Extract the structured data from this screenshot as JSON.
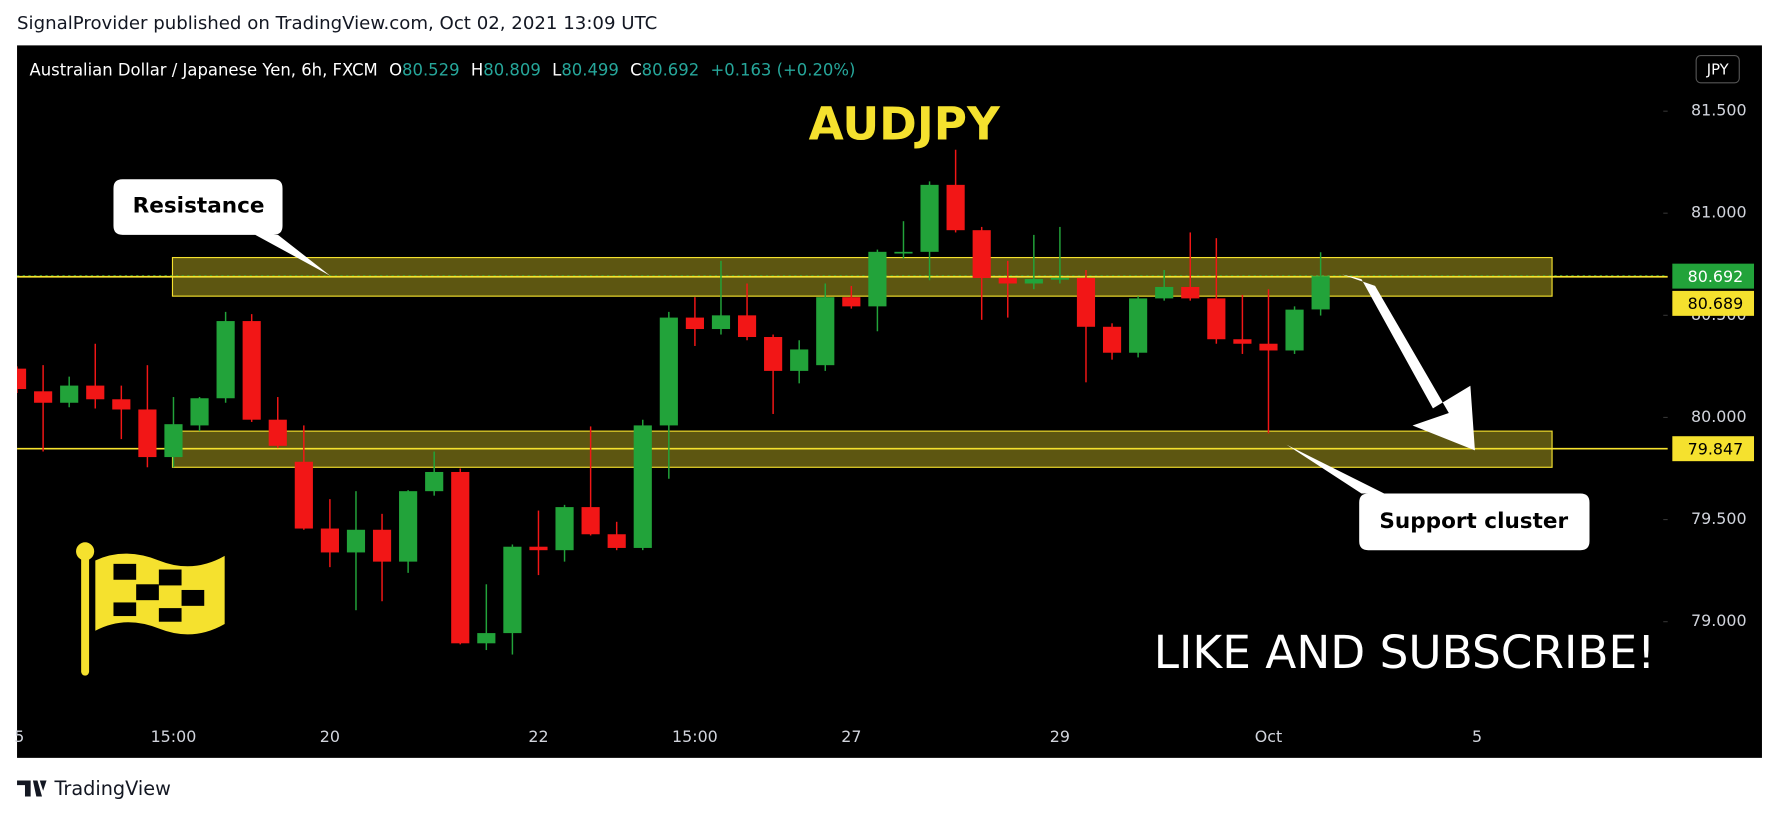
{
  "header": {
    "published": "SignalProvider published on TradingView.com, Oct 02, 2021 13:09 UTC"
  },
  "footer": {
    "brand": "TradingView"
  },
  "chart_data": {
    "type": "candlestick",
    "title": "AUDJPY",
    "symbol": "Australian Dollar / Japanese Yen, 6h, FXCM",
    "legend_values": [
      {
        "label": "O",
        "value": 80.529
      },
      {
        "label": "H",
        "value": 80.809
      },
      {
        "label": "L",
        "value": 80.499
      },
      {
        "label": "C",
        "value": 80.692
      }
    ],
    "change": "+0.163 (+0.20%)",
    "currency": "JPY",
    "up_color": "#22a33a",
    "down_color": "#f21616",
    "x": [
      "5",
      null,
      null,
      null,
      null,
      null,
      "15:00",
      null,
      null,
      null,
      null,
      null,
      "20",
      null,
      null,
      null,
      null,
      null,
      null,
      null,
      "22",
      null,
      null,
      null,
      null,
      null,
      "15:00",
      null,
      null,
      null,
      null,
      null,
      "27",
      null,
      null,
      null,
      null,
      null,
      null,
      null,
      "29",
      null,
      null,
      null,
      null,
      null,
      null,
      null,
      "Oct",
      null,
      null,
      null,
      null,
      null,
      null,
      null,
      "5"
    ],
    "open": [
      80.239,
      80.128,
      80.072,
      80.156,
      80.089,
      80.039,
      79.806,
      79.961,
      80.094,
      80.472,
      79.989,
      79.783,
      79.456,
      79.339,
      79.45,
      79.294,
      79.639,
      79.733,
      78.894,
      78.944,
      79.367,
      79.35,
      79.561,
      79.428,
      79.361,
      79.961,
      80.489,
      80.433,
      80.5,
      80.394,
      80.228,
      80.256,
      80.589,
      80.544,
      80.806,
      80.811,
      81.139,
      80.917,
      80.683,
      80.656,
      80.678,
      80.683,
      80.444,
      80.317,
      80.583,
      80.639,
      80.583,
      80.383,
      80.361,
      80.328,
      80.529,
      null,
      null,
      null,
      null,
      null,
      null
    ],
    "high": [
      80.25,
      80.256,
      80.2,
      80.361,
      80.156,
      80.256,
      80.1,
      80.1,
      80.517,
      80.506,
      80.1,
      79.961,
      79.6,
      79.639,
      79.528,
      79.644,
      79.833,
      79.75,
      79.183,
      79.378,
      79.544,
      79.572,
      79.956,
      79.489,
      79.989,
      80.517,
      80.589,
      80.767,
      80.656,
      80.406,
      80.378,
      80.656,
      80.644,
      80.822,
      80.961,
      81.156,
      81.311,
      80.933,
      80.767,
      80.894,
      80.933,
      80.722,
      80.461,
      80.594,
      80.722,
      80.906,
      80.878,
      80.6,
      80.628,
      80.544,
      80.809,
      null,
      null,
      null,
      null,
      null,
      null
    ],
    "low": [
      80.12,
      79.833,
      80.05,
      80.044,
      79.894,
      79.756,
      79.756,
      79.933,
      80.072,
      79.978,
      79.85,
      79.45,
      79.267,
      79.056,
      79.1,
      79.239,
      79.617,
      78.889,
      78.861,
      78.839,
      79.228,
      79.294,
      79.422,
      79.35,
      79.35,
      79.7,
      80.35,
      80.406,
      80.378,
      80.017,
      80.167,
      80.228,
      80.533,
      80.422,
      80.778,
      80.672,
      80.906,
      80.478,
      80.489,
      80.628,
      80.656,
      80.172,
      80.283,
      80.294,
      80.572,
      80.572,
      80.361,
      80.311,
      79.922,
      80.311,
      80.499,
      null,
      null,
      null,
      null,
      null,
      null
    ],
    "close": [
      80.139,
      80.072,
      80.156,
      80.089,
      80.039,
      79.806,
      79.967,
      80.094,
      80.472,
      79.989,
      79.861,
      79.456,
      79.339,
      79.45,
      79.294,
      79.639,
      79.733,
      78.894,
      78.944,
      79.367,
      79.35,
      79.561,
      79.428,
      79.361,
      79.961,
      80.489,
      80.433,
      80.5,
      80.394,
      80.228,
      80.333,
      80.589,
      80.544,
      80.811,
      80.811,
      81.139,
      80.917,
      80.683,
      80.656,
      80.678,
      80.683,
      80.444,
      80.317,
      80.583,
      80.639,
      80.583,
      80.383,
      80.361,
      80.328,
      80.528,
      80.692,
      null,
      null,
      null,
      null,
      null,
      null
    ],
    "ylim": [
      78.533,
      81.822
    ],
    "yticks": [
      {
        "value": 79,
        "label": "79.000"
      },
      {
        "value": 79.5,
        "label": "79.500"
      },
      {
        "value": 80,
        "label": "80.000"
      },
      {
        "value": 80.5,
        "label": "80.500"
      },
      {
        "value": 81,
        "label": "81.000"
      },
      {
        "value": 81.5,
        "label": "81.500"
      }
    ],
    "price_lines": [
      {
        "value": 80.692,
        "color": "#22a33a"
      },
      {
        "value": 80.689,
        "color": "#f5e12e"
      },
      {
        "value": 79.847,
        "color": "#f5e12e"
      }
    ],
    "zones": [
      {
        "low": 80.594,
        "high": 80.783,
        "label": "Resistance"
      },
      {
        "low": 79.756,
        "high": 79.933,
        "label": "Support cluster"
      }
    ],
    "annotation": "LIKE AND SUBSCRIBE!"
  }
}
